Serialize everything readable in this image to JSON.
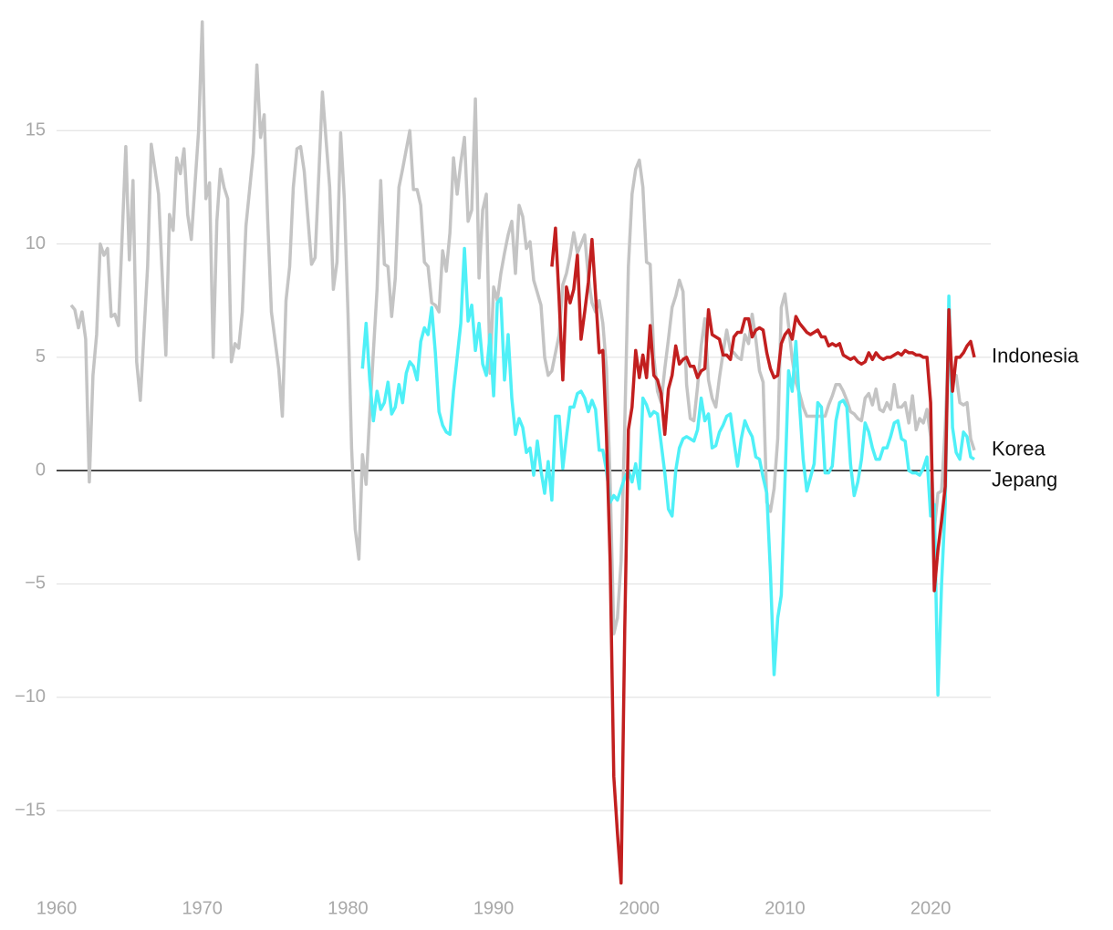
{
  "chart_data": {
    "type": "line",
    "xlim": [
      1960,
      2024
    ],
    "xticks": [
      1960,
      1970,
      1980,
      1990,
      2000,
      2010,
      2020
    ],
    "ylim": [
      -18.5,
      20
    ],
    "yticks": [
      {
        "value": -15,
        "label": "−15"
      },
      {
        "value": -10,
        "label": "−10"
      },
      {
        "value": -5,
        "label": "−5"
      },
      0,
      5,
      10,
      15
    ],
    "grid": true,
    "series": [
      {
        "name": "Korea",
        "color": "#c4c4c4",
        "x": [
          1961,
          1961.25,
          1961.5,
          1961.75,
          1962,
          1962.25,
          1962.5,
          1962.75,
          1963,
          1963.25,
          1963.5,
          1963.75,
          1964,
          1964.25,
          1964.75,
          1965,
          1965.25,
          1965.5,
          1965.75,
          1966.25,
          1966.5,
          1967,
          1967.5,
          1967.75,
          1968,
          1968.25,
          1968.5,
          1968.75,
          1969,
          1969.25,
          1969.75,
          1970,
          1970.25,
          1970.5,
          1970.75,
          1971,
          1971.25,
          1971.5,
          1971.75,
          1972,
          1972.25,
          1972.5,
          1972.75,
          1973,
          1973.5,
          1973.75,
          1974,
          1974.25,
          1974.5,
          1974.75,
          1975.25,
          1975.5,
          1975.75,
          1976,
          1976.25,
          1976.5,
          1976.75,
          1977,
          1977.5,
          1977.75,
          1978,
          1978.25,
          1978.75,
          1979,
          1979.25,
          1979.5,
          1979.75,
          1980,
          1980.25,
          1980.5,
          1980.75,
          1981,
          1981.25,
          1981.5,
          1982,
          1982.25,
          1982.5,
          1982.75,
          1983,
          1983.25,
          1983.5,
          1983.75,
          1984.25,
          1984.5,
          1984.75,
          1985,
          1985.25,
          1985.5,
          1985.75,
          1986,
          1986.25,
          1986.5,
          1986.75,
          1987,
          1987.25,
          1987.5,
          1987.75,
          1988,
          1988.25,
          1988.5,
          1988.75,
          1989,
          1989.25,
          1989.5,
          1989.75,
          1990,
          1990.25,
          1990.5,
          1990.75,
          1991,
          1991.25,
          1991.5,
          1991.75,
          1992,
          1992.25,
          1992.5,
          1992.75,
          1993.25,
          1993.5,
          1993.75,
          1994,
          1994.5,
          1994.75,
          1995,
          1995.25,
          1995.5,
          1995.75,
          1996,
          1996.25,
          1996.5,
          1996.75,
          1997,
          1997.25,
          1997.5,
          1997.75,
          1998,
          1998.25,
          1998.5,
          1998.75,
          1999,
          1999.25,
          1999.5,
          1999.75,
          2000,
          2000.25,
          2000.5,
          2000.75,
          2001,
          2001.25,
          2001.5,
          2001.75,
          2002,
          2002.25,
          2002.5,
          2002.75,
          2003,
          2003.25,
          2003.5,
          2003.75,
          2004,
          2004.25,
          2004.5,
          2004.75,
          2005,
          2005.25,
          2005.5,
          2005.75,
          2006,
          2006.25,
          2006.5,
          2006.75,
          2007,
          2007.25,
          2007.5,
          2007.75,
          2008,
          2008.25,
          2008.5,
          2008.75,
          2009,
          2009.25,
          2009.5,
          2009.75,
          2010,
          2010.25,
          2010.5,
          2010.75,
          2011,
          2011.25,
          2011.5,
          2011.75,
          2012,
          2012.25,
          2012.5,
          2012.75,
          2013,
          2013.25,
          2013.5,
          2013.75,
          2014,
          2014.25,
          2014.5,
          2014.75,
          2015,
          2015.25,
          2015.5,
          2015.75,
          2016,
          2016.25,
          2016.5,
          2016.75,
          2017,
          2017.25,
          2017.5,
          2017.75,
          2018,
          2018.25,
          2018.5,
          2018.75,
          2019,
          2019.25,
          2019.5,
          2019.75,
          2020,
          2020.25,
          2020.5,
          2020.75,
          2021,
          2021.25,
          2021.5,
          2021.75,
          2022,
          2022.25,
          2022.5,
          2022.75,
          2023
        ],
        "values": [
          7.3,
          7.1,
          6.3,
          7.0,
          5.8,
          -0.5,
          4.2,
          6.0,
          10.0,
          9.5,
          9.8,
          6.8,
          6.9,
          6.4,
          14.3,
          9.3,
          12.8,
          4.8,
          3.1,
          9.0,
          14.4,
          12.2,
          5.1,
          11.3,
          10.6,
          13.8,
          13.1,
          14.2,
          11.3,
          10.2,
          15.0,
          19.8,
          12.0,
          12.7,
          5.0,
          11.0,
          13.3,
          12.5,
          12.0,
          4.8,
          5.6,
          5.4,
          7.0,
          10.8,
          14.0,
          17.9,
          14.7,
          15.7,
          11.0,
          7.0,
          4.5,
          2.4,
          7.5,
          9.0,
          12.5,
          14.2,
          14.3,
          13.2,
          9.1,
          9.4,
          13.0,
          16.7,
          12.5,
          8.0,
          9.2,
          14.9,
          12.0,
          7.0,
          1.0,
          -2.6,
          -3.9,
          0.7,
          -0.6,
          2.5,
          8.0,
          12.8,
          9.1,
          9.0,
          6.8,
          8.5,
          12.5,
          13.3,
          15.0,
          12.4,
          12.4,
          11.7,
          9.2,
          9.0,
          7.4,
          7.3,
          7.0,
          9.7,
          8.8,
          10.5,
          13.8,
          12.2,
          13.6,
          14.7,
          11.0,
          11.5,
          16.4,
          8.5,
          11.5,
          12.2,
          4.3,
          8.1,
          7.5,
          8.7,
          9.6,
          10.4,
          11.0,
          8.7,
          11.7,
          11.2,
          9.8,
          10.1,
          8.4,
          7.3,
          5.0,
          4.2,
          4.4,
          6.0,
          8.2,
          8.7,
          9.5,
          10.5,
          9.6,
          10.0,
          10.4,
          8.5,
          7.4,
          7.0,
          7.5,
          6.5,
          4.5,
          -0.5,
          -7.2,
          -6.5,
          -4.0,
          2.0,
          9.0,
          12.2,
          13.3,
          13.7,
          12.5,
          9.2,
          9.1,
          5.0,
          3.5,
          3.0,
          4.5,
          5.8,
          7.2,
          7.7,
          8.4,
          7.9,
          3.8,
          2.3,
          2.2,
          3.7,
          5.5,
          6.7,
          4.0,
          3.2,
          2.8,
          4.1,
          5.2,
          6.2,
          5.3,
          5.2,
          5.0,
          4.9,
          6.0,
          5.6,
          6.9,
          5.8,
          4.4,
          3.9,
          -1.4,
          -1.8,
          -0.8,
          1.4,
          7.2,
          7.8,
          6.4,
          4.9,
          3.9,
          3.4,
          2.8,
          2.4,
          2.4,
          2.4,
          2.4,
          2.4,
          2.4,
          2.9,
          3.3,
          3.8,
          3.8,
          3.5,
          3.1,
          2.6,
          2.5,
          2.3,
          2.2,
          3.2,
          3.4,
          2.9,
          3.6,
          2.7,
          2.6,
          3.0,
          2.7,
          3.8,
          2.8,
          2.8,
          3.0,
          2.1,
          3.3,
          1.8,
          2.3,
          2.1,
          2.7,
          1.5,
          -2.6,
          -1.0,
          -0.9,
          1.9,
          6.0,
          4.1,
          4.2,
          3.0,
          2.9,
          3.0,
          1.4,
          0.9
        ]
      },
      {
        "name": "Jepang",
        "color": "#4ff0f7",
        "x": [
          1981,
          1981.25,
          1981.5,
          1981.75,
          1982,
          1982.25,
          1982.5,
          1982.75,
          1983,
          1983.25,
          1983.5,
          1983.75,
          1984,
          1984.25,
          1984.5,
          1984.75,
          1985,
          1985.25,
          1985.5,
          1985.75,
          1986,
          1986.25,
          1986.5,
          1986.75,
          1987,
          1987.25,
          1987.5,
          1987.75,
          1988,
          1988.25,
          1988.5,
          1988.75,
          1989,
          1989.25,
          1989.5,
          1989.75,
          1990,
          1990.25,
          1990.5,
          1990.75,
          1991,
          1991.25,
          1991.5,
          1991.75,
          1992,
          1992.25,
          1992.5,
          1992.75,
          1993,
          1993.25,
          1993.5,
          1993.75,
          1994,
          1994.25,
          1994.5,
          1994.75,
          1995,
          1995.25,
          1995.5,
          1995.75,
          1996,
          1996.25,
          1996.5,
          1996.75,
          1997,
          1997.25,
          1997.5,
          1997.75,
          1998,
          1998.25,
          1998.5,
          1998.75,
          1999,
          1999.25,
          1999.5,
          1999.75,
          2000,
          2000.25,
          2000.5,
          2000.75,
          2001,
          2001.25,
          2001.5,
          2001.75,
          2002,
          2002.25,
          2002.5,
          2002.75,
          2003,
          2003.25,
          2003.5,
          2003.75,
          2004,
          2004.25,
          2004.5,
          2004.75,
          2005,
          2005.25,
          2005.5,
          2005.75,
          2006,
          2006.25,
          2006.5,
          2006.75,
          2007,
          2007.25,
          2007.5,
          2007.75,
          2008,
          2008.25,
          2008.5,
          2008.75,
          2009,
          2009.25,
          2009.5,
          2009.75,
          2010,
          2010.25,
          2010.5,
          2010.75,
          2011,
          2011.25,
          2011.5,
          2011.75,
          2012,
          2012.25,
          2012.5,
          2012.75,
          2013,
          2013.25,
          2013.5,
          2013.75,
          2014,
          2014.25,
          2014.5,
          2014.75,
          2015,
          2015.25,
          2015.5,
          2015.75,
          2016,
          2016.25,
          2016.5,
          2016.75,
          2017,
          2017.25,
          2017.5,
          2017.75,
          2018,
          2018.25,
          2018.5,
          2018.75,
          2019,
          2019.25,
          2019.5,
          2019.75,
          2020,
          2020.25,
          2020.5,
          2020.75,
          2021,
          2021.25,
          2021.5,
          2021.75,
          2022,
          2022.25,
          2022.5,
          2022.75,
          2023
        ],
        "values": [
          4.5,
          6.5,
          4.0,
          2.2,
          3.5,
          2.7,
          3.0,
          3.9,
          2.5,
          2.8,
          3.8,
          3.0,
          4.3,
          4.8,
          4.6,
          4.0,
          5.7,
          6.3,
          6.0,
          7.2,
          5.2,
          2.6,
          2.0,
          1.7,
          1.6,
          3.5,
          5.0,
          6.5,
          9.8,
          6.6,
          7.3,
          5.3,
          6.5,
          4.7,
          4.2,
          6.0,
          3.3,
          7.4,
          7.6,
          4.0,
          6.0,
          3.2,
          1.6,
          2.3,
          1.9,
          0.8,
          1.0,
          -0.2,
          1.3,
          0.0,
          -1.0,
          0.4,
          -1.3,
          2.4,
          2.4,
          0.1,
          1.5,
          2.8,
          2.8,
          3.4,
          3.5,
          3.2,
          2.6,
          3.1,
          2.7,
          0.9,
          0.9,
          0.0,
          -1.4,
          -1.1,
          -1.3,
          -0.8,
          -0.3,
          0.0,
          -0.5,
          0.3,
          -0.8,
          3.2,
          2.9,
          2.4,
          2.6,
          2.5,
          1.2,
          -0.1,
          -1.7,
          -2.0,
          0.0,
          1.0,
          1.4,
          1.5,
          1.4,
          1.3,
          1.8,
          3.2,
          2.2,
          2.5,
          1.0,
          1.1,
          1.7,
          2.0,
          2.4,
          2.5,
          1.3,
          0.2,
          1.4,
          2.2,
          1.8,
          1.5,
          0.6,
          0.5,
          -0.3,
          -1.0,
          -4.5,
          -9.0,
          -6.5,
          -5.5,
          -0.5,
          4.4,
          3.5,
          5.7,
          2.9,
          0.5,
          -0.9,
          -0.3,
          0.3,
          3.0,
          2.8,
          -0.1,
          -0.1,
          0.2,
          2.2,
          3.0,
          3.1,
          2.8,
          0.3,
          -1.1,
          -0.5,
          0.5,
          2.1,
          1.7,
          1.0,
          0.5,
          0.5,
          1.0,
          1.0,
          1.5,
          2.1,
          2.2,
          1.4,
          1.3,
          0.0,
          -0.1,
          -0.1,
          -0.2,
          0.1,
          0.6,
          -2.0,
          -1.5,
          -9.9,
          -5.0,
          -1.5,
          7.7,
          1.9,
          0.8,
          0.5,
          1.7,
          1.5,
          0.6,
          0.5
        ]
      },
      {
        "name": "Indonesia",
        "color": "#c21f1f",
        "x": [
          1994,
          1994.25,
          1994.5,
          1994.75,
          1995,
          1995.25,
          1995.5,
          1995.75,
          1996,
          1996.25,
          1996.5,
          1996.75,
          1997,
          1997.25,
          1997.5,
          1997.75,
          1998,
          1998.25,
          1998.5,
          1998.75,
          1999,
          1999.25,
          1999.5,
          1999.75,
          2000,
          2000.25,
          2000.5,
          2000.75,
          2001,
          2001.25,
          2001.5,
          2001.75,
          2002,
          2002.25,
          2002.5,
          2002.75,
          2003,
          2003.25,
          2003.5,
          2003.75,
          2004,
          2004.25,
          2004.5,
          2004.75,
          2005,
          2005.25,
          2005.5,
          2005.75,
          2006,
          2006.25,
          2006.5,
          2006.75,
          2007,
          2007.25,
          2007.5,
          2007.75,
          2008,
          2008.25,
          2008.5,
          2008.75,
          2009,
          2009.25,
          2009.5,
          2009.75,
          2010,
          2010.25,
          2010.5,
          2010.75,
          2011,
          2011.25,
          2011.5,
          2011.75,
          2012,
          2012.25,
          2012.5,
          2012.75,
          2013,
          2013.25,
          2013.5,
          2013.75,
          2014,
          2014.25,
          2014.5,
          2014.75,
          2015,
          2015.25,
          2015.5,
          2015.75,
          2016,
          2016.25,
          2016.5,
          2016.75,
          2017,
          2017.25,
          2017.5,
          2017.75,
          2018,
          2018.25,
          2018.5,
          2018.75,
          2019,
          2019.25,
          2019.5,
          2019.75,
          2020,
          2020.25,
          2020.5,
          2020.75,
          2021,
          2021.25,
          2021.5,
          2021.75,
          2022,
          2022.25,
          2022.5,
          2022.75,
          2023
        ],
        "values": [
          9.0,
          10.7,
          7.5,
          4.0,
          8.1,
          7.4,
          8.0,
          9.5,
          5.8,
          7.0,
          8.3,
          10.2,
          7.8,
          5.2,
          5.3,
          1.5,
          -4.0,
          -13.5,
          -16.0,
          -18.2,
          -7.0,
          1.8,
          2.8,
          5.3,
          4.1,
          5.1,
          4.1,
          6.4,
          4.2,
          4.0,
          3.4,
          1.6,
          3.6,
          4.2,
          5.5,
          4.7,
          4.9,
          5.0,
          4.6,
          4.6,
          4.1,
          4.4,
          4.5,
          7.1,
          6.0,
          5.9,
          5.8,
          5.1,
          5.1,
          4.9,
          5.9,
          6.1,
          6.1,
          6.7,
          6.7,
          5.9,
          6.2,
          6.3,
          6.2,
          5.2,
          4.5,
          4.1,
          4.2,
          5.6,
          6.0,
          6.2,
          5.8,
          6.8,
          6.5,
          6.3,
          6.1,
          6.0,
          6.1,
          6.2,
          5.9,
          5.9,
          5.5,
          5.6,
          5.5,
          5.6,
          5.1,
          5.0,
          4.9,
          5.0,
          4.8,
          4.7,
          4.8,
          5.2,
          4.9,
          5.2,
          5.0,
          4.9,
          5.0,
          5.0,
          5.1,
          5.2,
          5.1,
          5.3,
          5.2,
          5.2,
          5.1,
          5.1,
          5.0,
          5.0,
          3.0,
          -5.3,
          -3.5,
          -2.2,
          -0.7,
          7.1,
          3.5,
          5.0,
          5.0,
          5.2,
          5.5,
          5.7,
          5.0
        ]
      }
    ]
  }
}
